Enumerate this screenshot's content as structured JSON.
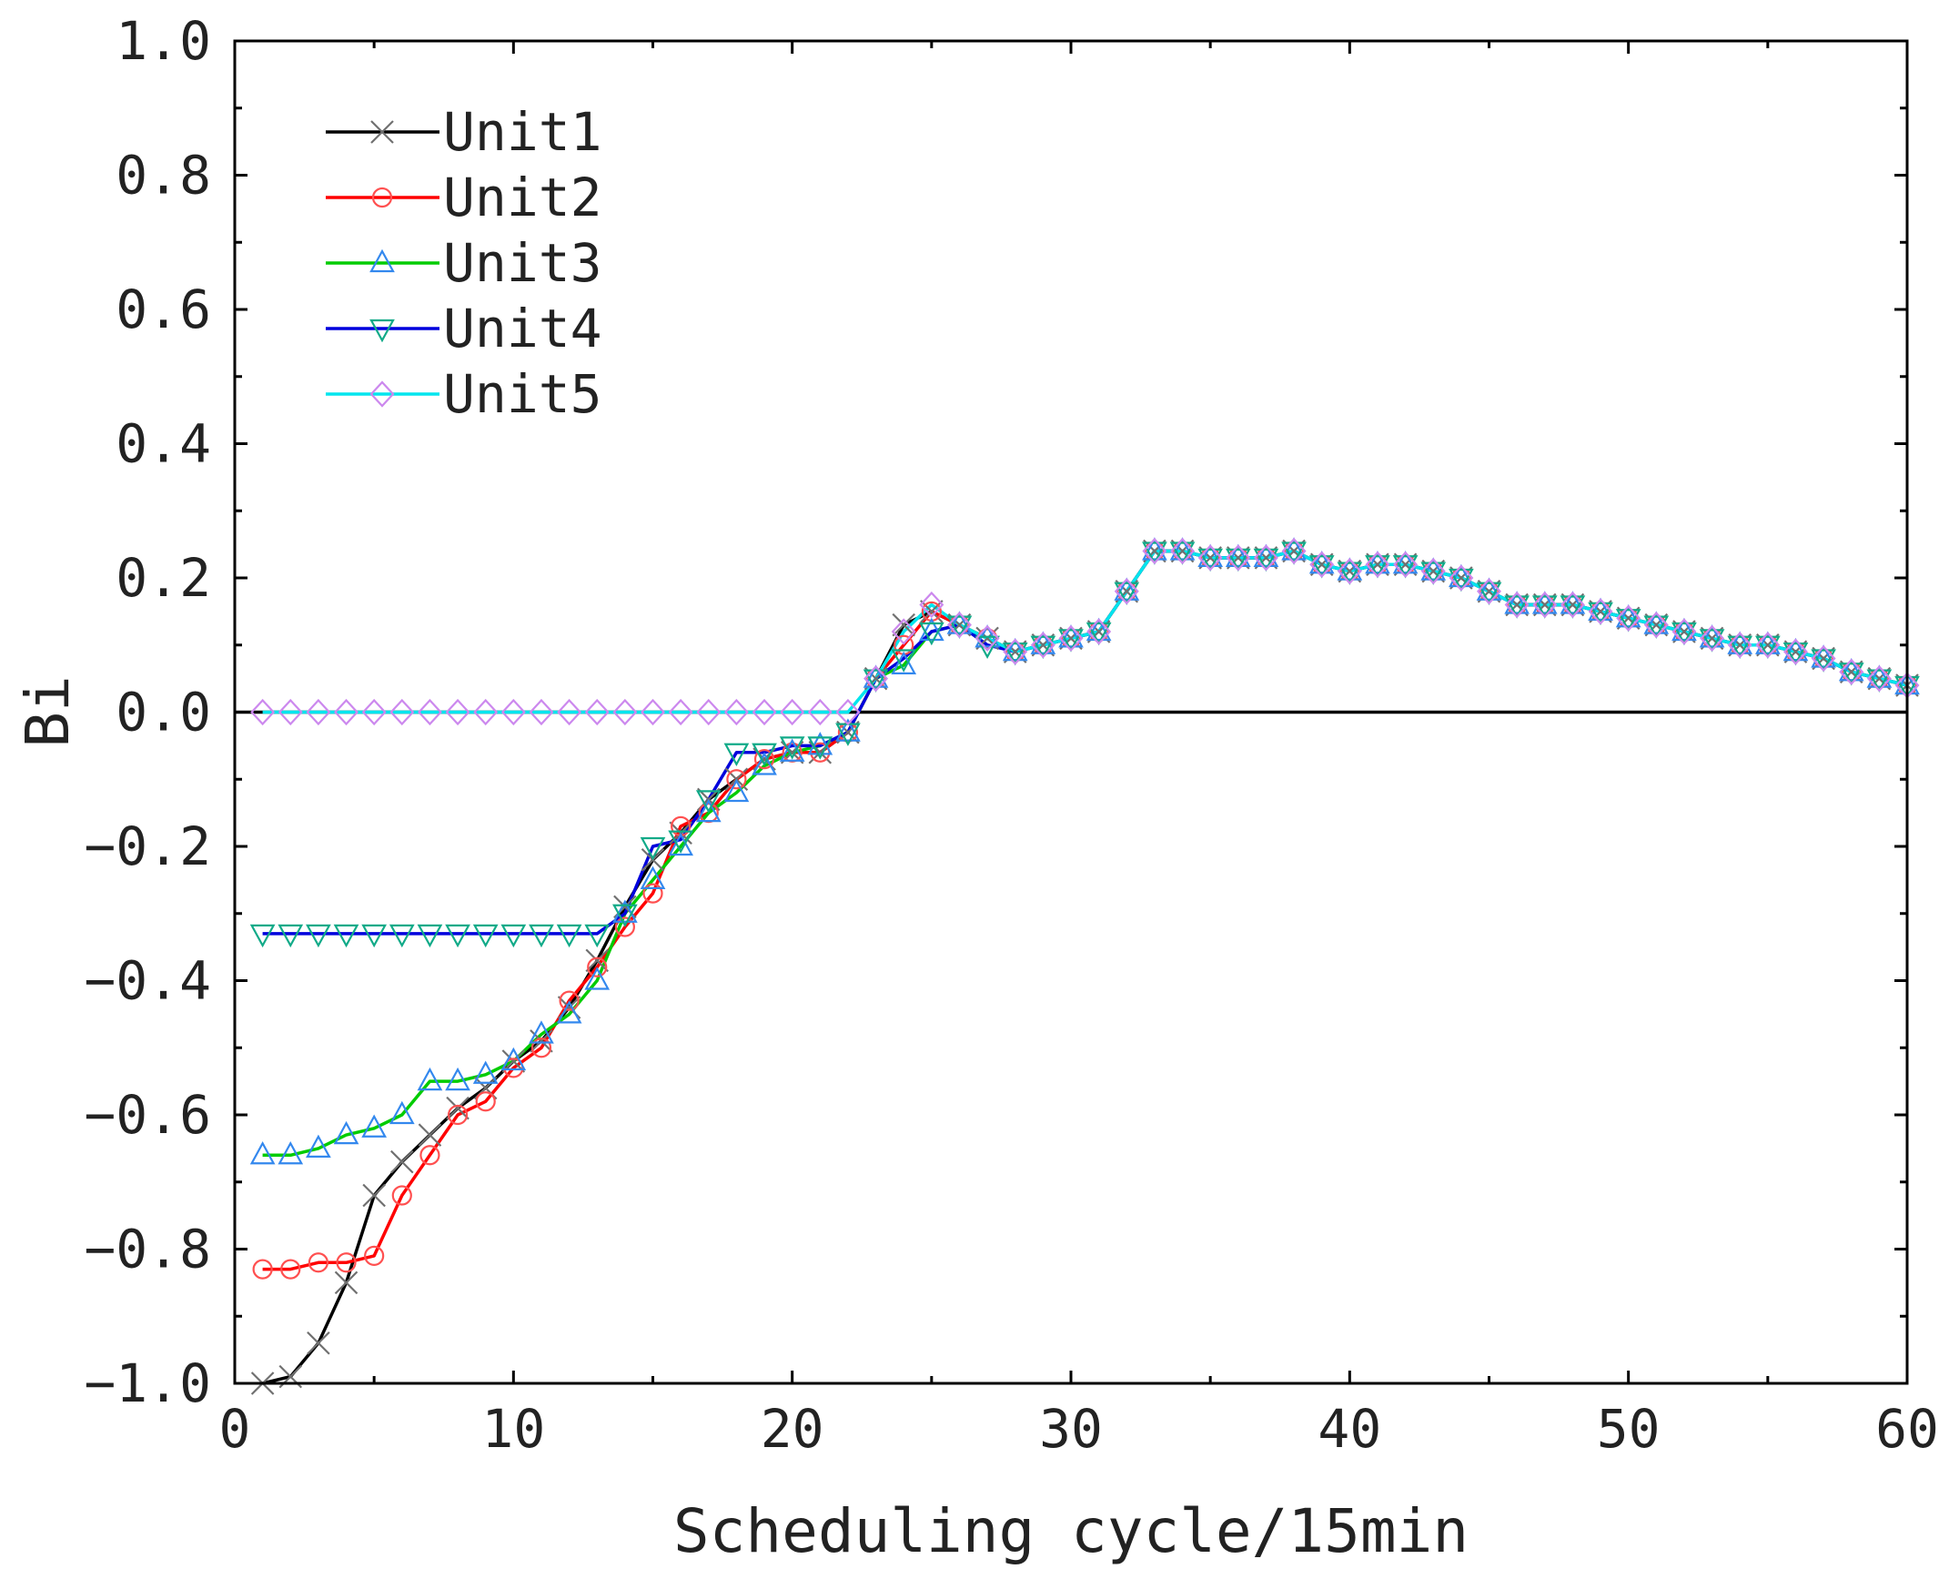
{
  "chart_data": {
    "type": "line",
    "title": "",
    "xlabel": "Scheduling cycle/15min",
    "ylabel": "Bi",
    "xlim": [
      0,
      60
    ],
    "ylim": [
      -1.0,
      1.0
    ],
    "x_ticks": [
      0,
      10,
      20,
      30,
      40,
      50,
      60
    ],
    "x_tick_labels": [
      "0",
      "10",
      "20",
      "30",
      "40",
      "50",
      "60"
    ],
    "y_ticks": [
      -1.0,
      -0.8,
      -0.6,
      -0.4,
      -0.2,
      0.0,
      0.2,
      0.4,
      0.6,
      0.8,
      1.0
    ],
    "y_tick_labels": [
      "−1.0",
      "−0.8",
      "−0.6",
      "−0.4",
      "−0.2",
      "0.0",
      "0.2",
      "0.4",
      "0.6",
      "0.8",
      "1.0"
    ],
    "grid": false,
    "reference_line_y": 0,
    "legend_position": "top-left",
    "x": [
      1,
      2,
      3,
      4,
      5,
      6,
      7,
      8,
      9,
      10,
      11,
      12,
      13,
      14,
      15,
      16,
      17,
      18,
      19,
      20,
      21,
      22,
      23,
      24,
      25,
      26,
      27,
      28,
      29,
      30,
      31,
      32,
      33,
      34,
      35,
      36,
      37,
      38,
      39,
      40,
      41,
      42,
      43,
      44,
      45,
      46,
      47,
      48,
      49,
      50,
      51,
      52,
      53,
      54,
      55,
      56,
      57,
      58,
      59,
      60
    ],
    "series": [
      {
        "name": "Unit1",
        "line_color": "#000000",
        "marker_color": "#707070",
        "marker": "x",
        "values": [
          -1.0,
          -0.99,
          -0.94,
          -0.85,
          -0.72,
          -0.67,
          -0.63,
          -0.59,
          -0.56,
          -0.52,
          -0.49,
          -0.44,
          -0.37,
          -0.29,
          -0.22,
          -0.18,
          -0.13,
          -0.1,
          -0.07,
          -0.06,
          -0.06,
          -0.03,
          0.05,
          0.13,
          0.15,
          0.13,
          0.11,
          0.09,
          0.1,
          0.11,
          0.12,
          0.18,
          0.24,
          0.24,
          0.23,
          0.23,
          0.23,
          0.24,
          0.22,
          0.21,
          0.22,
          0.22,
          0.21,
          0.2,
          0.18,
          0.16,
          0.16,
          0.16,
          0.15,
          0.14,
          0.13,
          0.12,
          0.11,
          0.1,
          0.1,
          0.09,
          0.08,
          0.06,
          0.05,
          0.04
        ]
      },
      {
        "name": "Unit2",
        "line_color": "#ff0000",
        "marker_color": "#ff5050",
        "marker": "circle",
        "values": [
          -0.83,
          -0.83,
          -0.82,
          -0.82,
          -0.81,
          -0.72,
          -0.66,
          -0.6,
          -0.58,
          -0.53,
          -0.5,
          -0.43,
          -0.38,
          -0.32,
          -0.27,
          -0.17,
          -0.15,
          -0.1,
          -0.07,
          -0.06,
          -0.06,
          -0.03,
          0.05,
          0.1,
          0.15,
          0.13,
          0.11,
          0.09,
          0.1,
          0.11,
          0.12,
          0.18,
          0.24,
          0.24,
          0.23,
          0.23,
          0.23,
          0.24,
          0.22,
          0.21,
          0.22,
          0.22,
          0.21,
          0.2,
          0.18,
          0.16,
          0.16,
          0.16,
          0.15,
          0.14,
          0.13,
          0.12,
          0.11,
          0.1,
          0.1,
          0.09,
          0.08,
          0.06,
          0.05,
          0.04
        ]
      },
      {
        "name": "Unit3",
        "line_color": "#00cc00",
        "marker_color": "#3388ee",
        "marker": "triangle-up",
        "values": [
          -0.66,
          -0.66,
          -0.65,
          -0.63,
          -0.62,
          -0.6,
          -0.55,
          -0.55,
          -0.54,
          -0.52,
          -0.48,
          -0.45,
          -0.4,
          -0.3,
          -0.25,
          -0.2,
          -0.15,
          -0.12,
          -0.08,
          -0.06,
          -0.05,
          -0.03,
          0.05,
          0.07,
          0.12,
          0.13,
          0.11,
          0.09,
          0.1,
          0.11,
          0.12,
          0.18,
          0.24,
          0.24,
          0.23,
          0.23,
          0.23,
          0.24,
          0.22,
          0.21,
          0.22,
          0.22,
          0.21,
          0.2,
          0.18,
          0.16,
          0.16,
          0.16,
          0.15,
          0.14,
          0.13,
          0.12,
          0.11,
          0.1,
          0.1,
          0.09,
          0.08,
          0.06,
          0.05,
          0.04
        ]
      },
      {
        "name": "Unit4",
        "line_color": "#0000dd",
        "marker_color": "#11aa88",
        "marker": "triangle-down",
        "values": [
          -0.33,
          -0.33,
          -0.33,
          -0.33,
          -0.33,
          -0.33,
          -0.33,
          -0.33,
          -0.33,
          -0.33,
          -0.33,
          -0.33,
          -0.33,
          -0.3,
          -0.2,
          -0.19,
          -0.13,
          -0.06,
          -0.06,
          -0.05,
          -0.05,
          -0.03,
          0.05,
          0.08,
          0.12,
          0.13,
          0.1,
          0.09,
          0.1,
          0.11,
          0.12,
          0.18,
          0.24,
          0.24,
          0.23,
          0.23,
          0.23,
          0.24,
          0.22,
          0.21,
          0.22,
          0.22,
          0.21,
          0.2,
          0.18,
          0.16,
          0.16,
          0.16,
          0.15,
          0.14,
          0.13,
          0.12,
          0.11,
          0.1,
          0.1,
          0.09,
          0.08,
          0.06,
          0.05,
          0.04
        ]
      },
      {
        "name": "Unit5",
        "line_color": "#00e5ee",
        "marker_color": "#cc88ee",
        "marker": "diamond",
        "values": [
          0.0,
          0.0,
          0.0,
          0.0,
          0.0,
          0.0,
          0.0,
          0.0,
          0.0,
          0.0,
          0.0,
          0.0,
          0.0,
          0.0,
          0.0,
          0.0,
          0.0,
          0.0,
          0.0,
          0.0,
          0.0,
          0.0,
          0.05,
          0.12,
          0.16,
          0.13,
          0.11,
          0.09,
          0.1,
          0.11,
          0.12,
          0.18,
          0.24,
          0.24,
          0.23,
          0.23,
          0.23,
          0.24,
          0.22,
          0.21,
          0.22,
          0.22,
          0.21,
          0.2,
          0.18,
          0.16,
          0.16,
          0.16,
          0.15,
          0.14,
          0.13,
          0.12,
          0.11,
          0.1,
          0.1,
          0.09,
          0.08,
          0.06,
          0.05,
          0.04
        ]
      }
    ]
  }
}
